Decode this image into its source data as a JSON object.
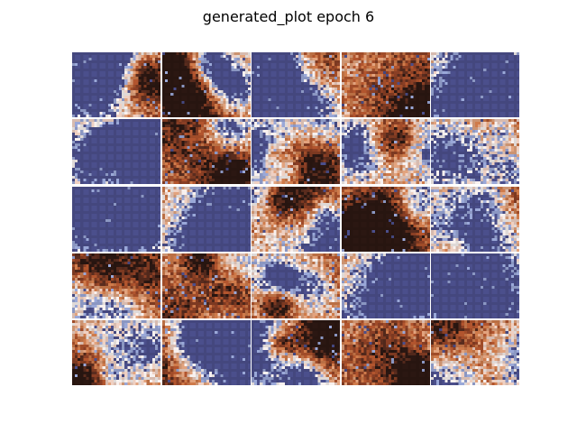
{
  "figure": {
    "title": "generated_plot epoch 6"
  },
  "grid": {
    "rows": 5,
    "cols": 5
  },
  "colors": {
    "background": "#ffffff",
    "palette": [
      "#2b1712",
      "#5a2c1e",
      "#8a3f25",
      "#b2552e",
      "#cf7b4b",
      "#e2a37e",
      "#efd0c2",
      "#f8f1ef",
      "#9aa8d8",
      "#4b4f8c"
    ]
  }
}
